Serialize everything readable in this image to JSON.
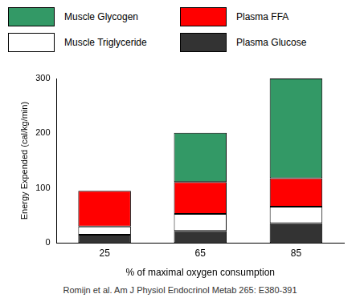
{
  "chart_data": {
    "type": "bar",
    "stacked": true,
    "categories": [
      "25",
      "65",
      "85"
    ],
    "x_label": "% of maximal oxygen consumption",
    "y_label": "Energy Expended (cal/kg/min)",
    "ylim": [
      0,
      300
    ],
    "yticks": [
      0,
      100,
      200,
      300
    ],
    "grid": false,
    "legend": "top",
    "annotations": [
      "Romijn et al. Am J Physiol Endocrinol Metab 265: E380-391"
    ],
    "series": [
      {
        "name": "Muscle Glycogen",
        "color": "#339966",
        "values": [
          0,
          90,
          182
        ]
      },
      {
        "name": "Plasma FFA",
        "color": "#ff0000",
        "values": [
          65,
          58,
          52
        ]
      },
      {
        "name": "Muscle Triglyceride",
        "color": "#ffffff",
        "values": [
          15,
          31,
          30
        ]
      },
      {
        "name": "Plasma Glucose",
        "color": "#333333",
        "values": [
          15,
          22,
          36
        ]
      }
    ]
  }
}
